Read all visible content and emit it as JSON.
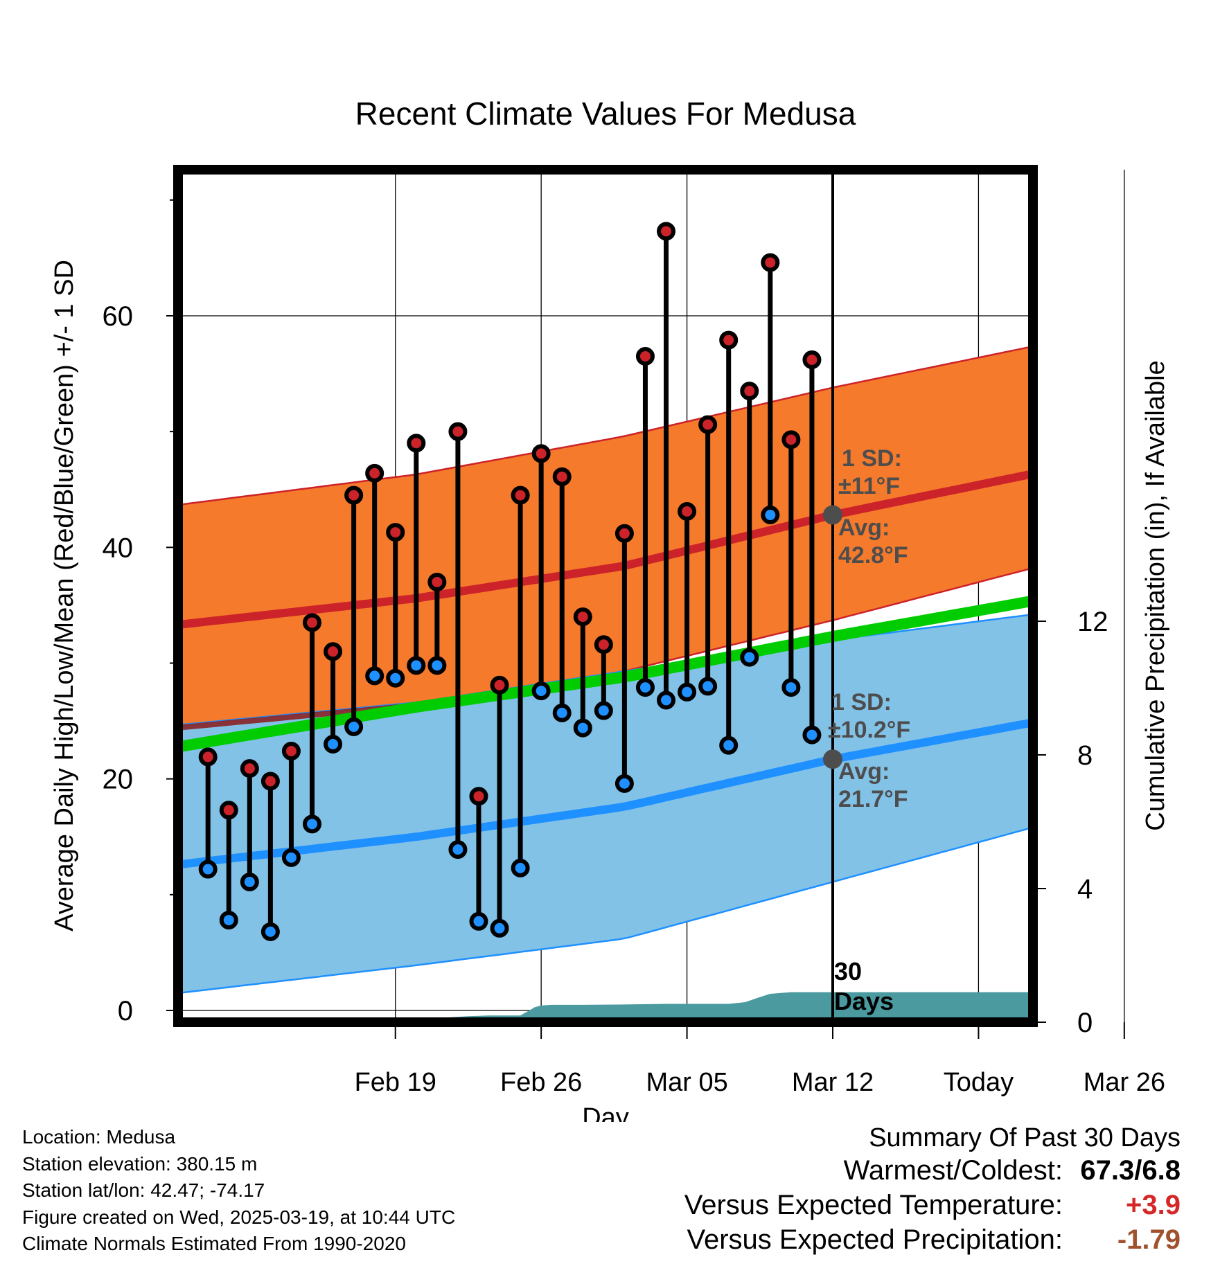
{
  "chart_data": {
    "type": "line",
    "title": "Recent Climate Values For Medusa",
    "xlabel": "Day",
    "ylabel": "Average Daily High/Low/Mean (Red/Blue/Green) +/- 1 SD",
    "y2label": "Cumulative Precipitation (in), If Available",
    "xticks": [
      "Feb 19",
      "Feb 26",
      "Mar 05",
      "Mar 12",
      "Today",
      "Mar 26"
    ],
    "yticks": [
      0,
      20,
      40,
      60
    ],
    "y2ticks": [
      0,
      4,
      8,
      12
    ],
    "ylim": [
      -1,
      73
    ],
    "y2lim": [
      0,
      24.5
    ],
    "x_start_day": -28,
    "x_end_day": 12,
    "today_day": 0,
    "grid": true,
    "normal_high_avg": {
      "x": [
        -30,
        -20,
        -10,
        0,
        10
      ],
      "values": [
        33.6,
        35.6,
        38.4,
        42.8,
        46.5
      ]
    },
    "normal_high_band": {
      "upper": [
        44.0,
        46.3,
        49.6,
        53.8,
        57.5
      ],
      "lower": [
        24.9,
        26.6,
        29.3,
        33.7,
        38.4
      ]
    },
    "normal_low_avg": {
      "x": [
        -30,
        -20,
        -10,
        0,
        10
      ],
      "values": [
        12.9,
        15.0,
        17.6,
        21.7,
        25.0
      ]
    },
    "normal_low_band": {
      "upper": [
        24.9,
        26.6,
        29.3,
        32.0,
        34.3
      ],
      "lower": [
        1.8,
        3.9,
        6.2,
        11.1,
        16.0
      ]
    },
    "normal_mean": {
      "x": [
        -30,
        -20,
        -10,
        0,
        10
      ],
      "values": [
        23.2,
        26.2,
        28.8,
        32.3,
        35.5
      ]
    },
    "observed": {
      "days": [
        -30,
        -29,
        -28,
        -27,
        -26,
        -25,
        -24,
        -23,
        -22,
        -21,
        -20,
        -19,
        -18,
        -17,
        -16,
        -15,
        -14,
        -13,
        -12,
        -11,
        -10,
        -9,
        -8,
        -7,
        -6,
        -5,
        -4,
        -3,
        -2,
        -1
      ],
      "highs": [
        21.9,
        17.3,
        20.9,
        19.8,
        22.4,
        33.5,
        31.0,
        44.5,
        46.4,
        41.3,
        49.0,
        37.0,
        50.0,
        18.5,
        28.1,
        44.5,
        48.1,
        46.1,
        34.0,
        31.6,
        41.2,
        56.5,
        67.3,
        43.1,
        50.6,
        57.9,
        53.5,
        64.6,
        49.3,
        56.2
      ],
      "lows": [
        12.2,
        7.8,
        11.1,
        6.8,
        13.2,
        16.1,
        23.0,
        24.5,
        28.9,
        28.7,
        29.8,
        29.8,
        13.9,
        7.7,
        7.1,
        12.3,
        27.6,
        25.7,
        24.4,
        25.9,
        19.6,
        27.9,
        26.8,
        27.5,
        28.0,
        22.9,
        30.5,
        42.8,
        27.9,
        23.8
      ]
    },
    "precip_cumulative": {
      "x": [
        -30,
        -20.5,
        -20,
        -17.5,
        -16.5,
        -15,
        -14.3,
        -14,
        -13.5,
        -12,
        -10,
        -8,
        -5,
        -4.2,
        -3.5,
        -3,
        -2,
        0,
        12
      ],
      "values": [
        0,
        0,
        0.08,
        0.18,
        0.2,
        0.2,
        0.45,
        0.5,
        0.52,
        0.52,
        0.53,
        0.55,
        0.55,
        0.6,
        0.75,
        0.85,
        0.9,
        0.9,
        0.9
      ]
    },
    "annotations": {
      "high_sd_1": "1 SD:",
      "high_sd_2": "±11°F",
      "high_avg_1": "Avg:",
      "high_avg_2": "42.8°F",
      "low_sd_1": "1 SD:",
      "low_sd_2": "±10.2°F",
      "low_avg_1": "Avg:",
      "low_avg_2": "21.7°F",
      "days_1": "30",
      "days_2": "Days"
    },
    "colors": {
      "high_band": "#f57a2c",
      "high_line": "#cc2229",
      "low_band": "#82c2e7",
      "low_line": "#1e90ff",
      "mean_line": "#00cc00",
      "precip": "#4a9aa0",
      "high_marker": "#cc2229",
      "low_marker": "#1e90ff",
      "today_marker": "#4d4d4d"
    }
  },
  "footer": {
    "location": "Location: Medusa",
    "elevation": "Station elevation: 380.15 m",
    "latlon": "Station lat/lon: 42.47; -74.17",
    "created": "Figure created on Wed, 2025-03-19, at 10:44 UTC",
    "normals": "Climate Normals Estimated From 1990-2020"
  },
  "summary": {
    "title": "Summary Of Past 30 Days",
    "warmest_label": "Warmest/Coldest:",
    "warmest_value": "67.3/6.8",
    "temp_label": "Versus Expected Temperature:",
    "temp_value": "+3.9",
    "temp_color": "#d62728",
    "precip_label": "Versus Expected Precipitation:",
    "precip_value": "-1.79",
    "precip_color": "#a0522d"
  }
}
